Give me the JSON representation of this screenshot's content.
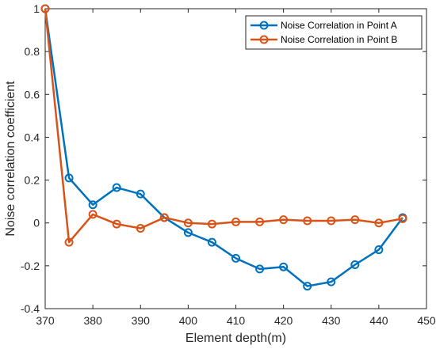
{
  "chart_data": {
    "type": "line",
    "xlabel": "Element depth(m)",
    "ylabel": "Noise correlation coefficient",
    "xlim": [
      370,
      450
    ],
    "ylim": [
      -0.4,
      1
    ],
    "xticks": [
      370,
      380,
      390,
      400,
      410,
      420,
      430,
      440,
      450
    ],
    "yticks": [
      -0.4,
      -0.2,
      0,
      0.2,
      0.4,
      0.6,
      0.8,
      1
    ],
    "x": [
      370,
      375,
      380,
      385,
      390,
      395,
      400,
      405,
      410,
      415,
      420,
      425,
      430,
      435,
      440,
      445
    ],
    "legend_position": "top-right",
    "grid": false,
    "series": [
      {
        "name": "Noise Correlation in Point A",
        "color": "#0072BD",
        "marker": "circle",
        "values": [
          1.0,
          0.21,
          0.085,
          0.165,
          0.135,
          0.025,
          -0.045,
          -0.09,
          -0.165,
          -0.215,
          -0.205,
          -0.295,
          -0.275,
          -0.195,
          -0.125,
          0.025
        ]
      },
      {
        "name": "Noise Correlation in Point B",
        "color": "#D95319",
        "marker": "circle",
        "values": [
          1.0,
          -0.09,
          0.04,
          -0.005,
          -0.025,
          0.025,
          0.0,
          -0.005,
          0.005,
          0.005,
          0.015,
          0.01,
          0.01,
          0.015,
          0.0,
          0.02
        ]
      }
    ]
  }
}
